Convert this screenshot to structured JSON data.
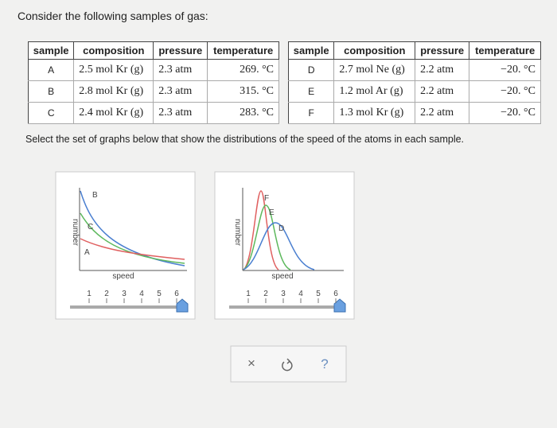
{
  "intro": "Consider the following samples of gas:",
  "tables": [
    {
      "headers": [
        "sample",
        "composition",
        "pressure",
        "temperature"
      ],
      "rows": [
        [
          "A",
          "2.5 mol Kr (g)",
          "2.3 atm",
          "269. °C"
        ],
        [
          "B",
          "2.8 mol Kr (g)",
          "2.3 atm",
          "315. °C"
        ],
        [
          "C",
          "2.4 mol Kr (g)",
          "2.3 atm",
          "283. °C"
        ]
      ]
    },
    {
      "headers": [
        "sample",
        "composition",
        "pressure",
        "temperature"
      ],
      "rows": [
        [
          "D",
          "2.7 mol Ne (g)",
          "2.2 atm",
          "−20. °C"
        ],
        [
          "E",
          "1.2 mol Ar (g)",
          "2.2 atm",
          "−20. °C"
        ],
        [
          "F",
          "1.3 mol Kr (g)",
          "2.2 atm",
          "−20. °C"
        ]
      ]
    }
  ],
  "instruction": "Select the set of graphs below that show the distributions of the speed of the atoms in each sample.",
  "graphs": [
    {
      "y_label": "number",
      "x_label": "speed",
      "curve_labels": [
        "B",
        "C",
        "A"
      ],
      "slider_ticks": [
        1,
        2,
        3,
        4,
        5,
        6
      ]
    },
    {
      "y_label": "number",
      "x_label": "speed",
      "curve_labels": [
        "F",
        "E",
        "D"
      ],
      "slider_ticks": [
        1,
        2,
        3,
        4,
        5,
        6
      ]
    }
  ],
  "buttons": [
    "×",
    "?"
  ]
}
